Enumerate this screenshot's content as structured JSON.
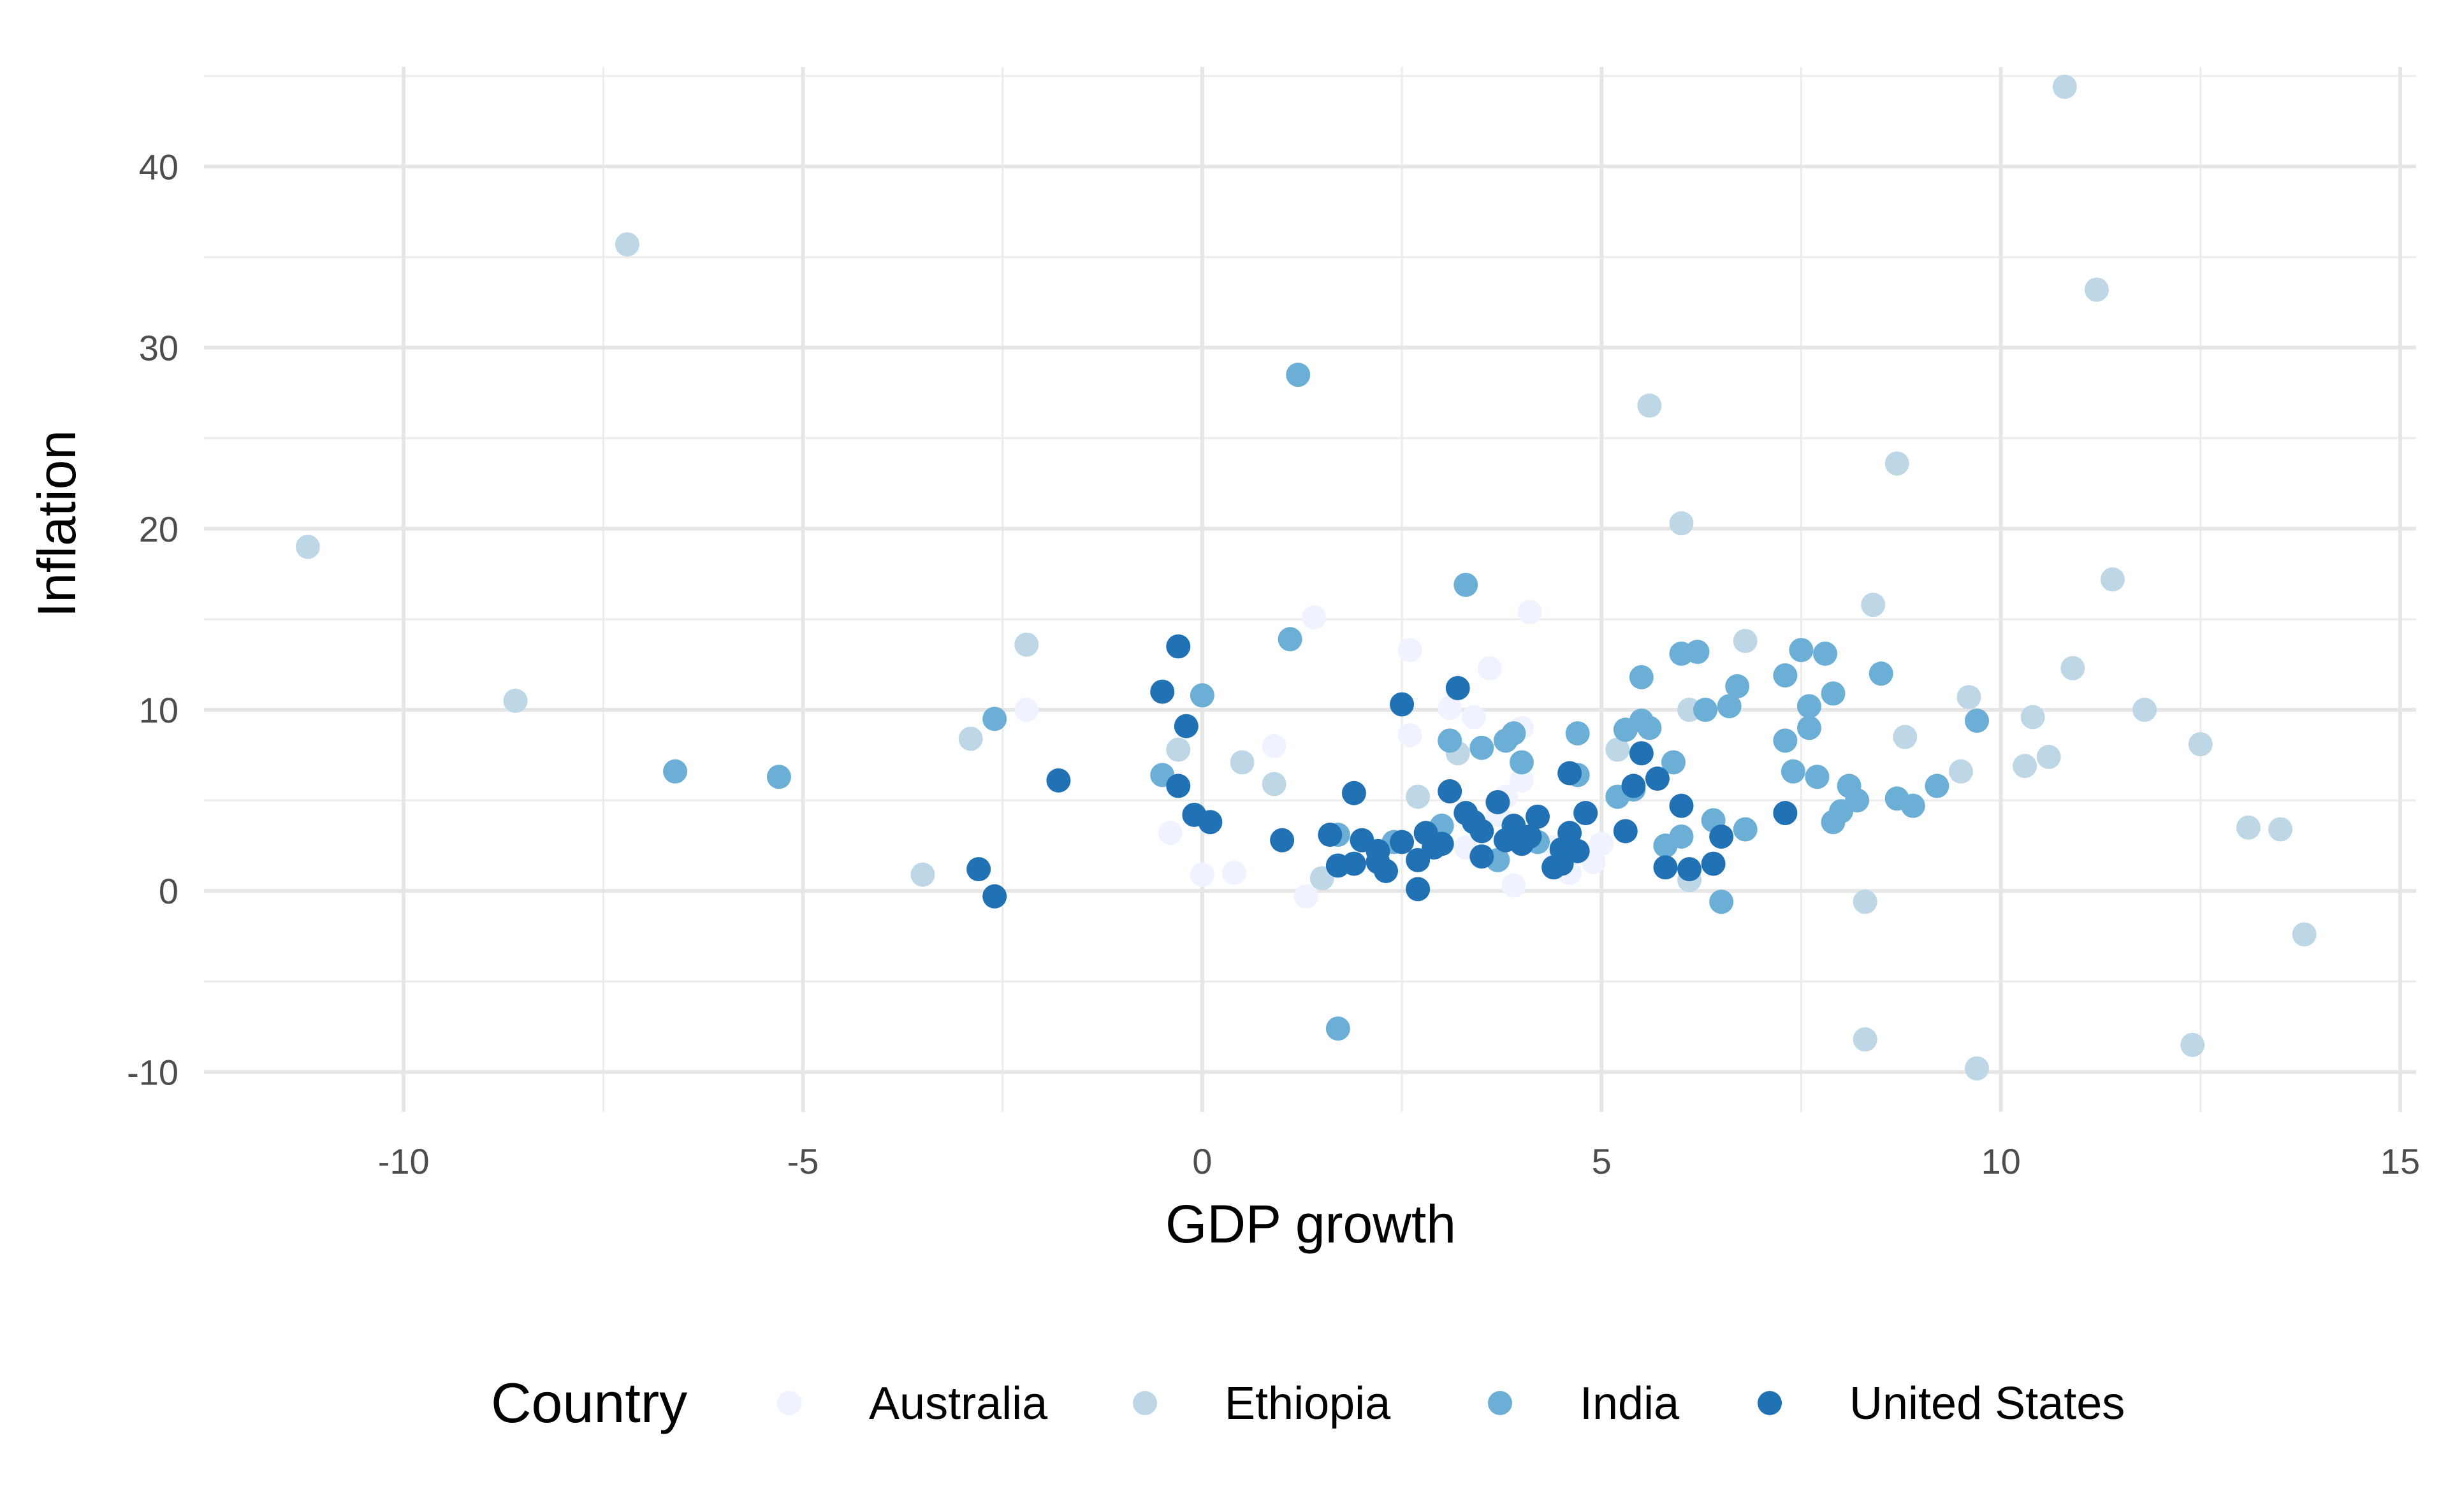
{
  "chart_data": {
    "type": "scatter",
    "xlabel": "GDP growth",
    "ylabel": "Inflation",
    "xlim": [
      -12.5,
      15.2
    ],
    "ylim": [
      -12.2,
      45.5
    ],
    "x_ticks": [
      -10,
      -5,
      0,
      5,
      10,
      15
    ],
    "y_ticks": [
      -10,
      0,
      10,
      20,
      30,
      40
    ],
    "x_tick_labels": [
      "-10",
      "-5",
      "0",
      "5",
      "10",
      "15"
    ],
    "y_tick_labels": [
      "-10",
      "0",
      "10",
      "20",
      "30",
      "40"
    ],
    "grid": true,
    "legend": {
      "title": "Country",
      "position": "bottom"
    },
    "series": [
      {
        "name": "Australia",
        "color": "#eff3ff",
        "points": [
          [
            -0.4,
            3.2
          ],
          [
            0,
            0.9
          ],
          [
            0.4,
            1.0
          ],
          [
            0.9,
            8.0
          ],
          [
            1.3,
            -0.3
          ],
          [
            1.4,
            15.1
          ],
          [
            2.6,
            13.3
          ],
          [
            2.6,
            8.6
          ],
          [
            2.9,
            3.0
          ],
          [
            3.1,
            10.1
          ],
          [
            3.4,
            9.6
          ],
          [
            3.6,
            12.3
          ],
          [
            3.8,
            5.2
          ],
          [
            3.9,
            0.3
          ],
          [
            4.0,
            6.1
          ],
          [
            4.0,
            9.0
          ],
          [
            4.1,
            15.4
          ],
          [
            4.4,
            2.4
          ],
          [
            4.6,
            1.0
          ],
          [
            4.9,
            1.6
          ],
          [
            3.3,
            2.4
          ],
          [
            -2.2,
            10.0
          ],
          [
            2.2,
            2.1
          ],
          [
            3.7,
            4.2
          ],
          [
            5.0,
            2.6
          ]
        ]
      },
      {
        "name": "Ethiopia",
        "color": "#bdd7e7",
        "points": [
          [
            -11.2,
            19.0
          ],
          [
            -8.6,
            10.5
          ],
          [
            -7.2,
            35.7
          ],
          [
            -3.5,
            0.9
          ],
          [
            -2.9,
            8.4
          ],
          [
            -2.2,
            13.6
          ],
          [
            -0.3,
            7.8
          ],
          [
            0.5,
            7.1
          ],
          [
            0.9,
            5.9
          ],
          [
            1.5,
            0.7
          ],
          [
            2.7,
            5.2
          ],
          [
            3.2,
            7.6
          ],
          [
            5.6,
            26.8
          ],
          [
            6.0,
            20.3
          ],
          [
            6.1,
            10.0
          ],
          [
            6.1,
            0.6
          ],
          [
            6.8,
            13.8
          ],
          [
            8.3,
            -0.6
          ],
          [
            8.3,
            -8.2
          ],
          [
            8.4,
            15.8
          ],
          [
            8.7,
            23.6
          ],
          [
            8.8,
            8.5
          ],
          [
            9.5,
            6.6
          ],
          [
            9.6,
            10.7
          ],
          [
            9.7,
            -9.8
          ],
          [
            10.3,
            6.9
          ],
          [
            10.4,
            9.6
          ],
          [
            10.6,
            7.4
          ],
          [
            10.8,
            44.4
          ],
          [
            10.9,
            12.3
          ],
          [
            11.2,
            33.2
          ],
          [
            11.4,
            17.2
          ],
          [
            11.8,
            10.0
          ],
          [
            12.4,
            -8.5
          ],
          [
            12.5,
            8.1
          ],
          [
            13.1,
            3.5
          ],
          [
            13.5,
            3.4
          ],
          [
            13.8,
            -2.4
          ],
          [
            5.2,
            7.8
          ]
        ]
      },
      {
        "name": "India",
        "color": "#6baed6",
        "points": [
          [
            -6.6,
            6.6
          ],
          [
            -5.3,
            6.3
          ],
          [
            -2.6,
            9.5
          ],
          [
            -0.5,
            6.4
          ],
          [
            0,
            10.8
          ],
          [
            1.1,
            13.9
          ],
          [
            1.2,
            28.5
          ],
          [
            1.7,
            -7.6
          ],
          [
            1.7,
            3.1
          ],
          [
            2.4,
            2.7
          ],
          [
            3.0,
            3.6
          ],
          [
            3.1,
            8.3
          ],
          [
            3.3,
            16.9
          ],
          [
            3.5,
            7.9
          ],
          [
            3.7,
            1.7
          ],
          [
            3.8,
            8.3
          ],
          [
            3.9,
            8.7
          ],
          [
            4.0,
            7.1
          ],
          [
            4.2,
            2.7
          ],
          [
            4.7,
            8.7
          ],
          [
            4.7,
            6.4
          ],
          [
            4.8,
            4.3
          ],
          [
            5.2,
            5.2
          ],
          [
            5.3,
            8.9
          ],
          [
            5.4,
            5.6
          ],
          [
            5.5,
            9.4
          ],
          [
            5.5,
            11.8
          ],
          [
            5.6,
            9.0
          ],
          [
            5.8,
            2.5
          ],
          [
            5.9,
            7.1
          ],
          [
            6.0,
            3.0
          ],
          [
            6.0,
            13.1
          ],
          [
            6.2,
            13.2
          ],
          [
            6.3,
            10.0
          ],
          [
            6.4,
            3.9
          ],
          [
            6.5,
            -0.6
          ],
          [
            6.6,
            10.2
          ],
          [
            6.7,
            11.3
          ],
          [
            6.8,
            3.4
          ],
          [
            7.3,
            8.3
          ],
          [
            7.3,
            11.9
          ],
          [
            7.4,
            6.6
          ],
          [
            7.5,
            13.3
          ],
          [
            7.6,
            9.0
          ],
          [
            7.6,
            10.2
          ],
          [
            7.7,
            6.3
          ],
          [
            7.8,
            13.1
          ],
          [
            7.9,
            10.9
          ],
          [
            7.9,
            3.8
          ],
          [
            8.0,
            4.4
          ],
          [
            8.1,
            5.8
          ],
          [
            8.2,
            5.0
          ],
          [
            8.5,
            12.0
          ],
          [
            8.7,
            5.1
          ],
          [
            8.9,
            4.7
          ],
          [
            9.2,
            5.8
          ],
          [
            9.7,
            9.4
          ]
        ]
      },
      {
        "name": "United States",
        "color": "#2171b5",
        "points": [
          [
            -2.8,
            1.2
          ],
          [
            -2.6,
            -0.3
          ],
          [
            -1.8,
            6.1
          ],
          [
            -0.5,
            11.0
          ],
          [
            -0.3,
            5.8
          ],
          [
            -0.3,
            13.5
          ],
          [
            -0.2,
            9.1
          ],
          [
            -0.1,
            4.2
          ],
          [
            0.1,
            3.8
          ],
          [
            1.0,
            2.8
          ],
          [
            1.6,
            3.1
          ],
          [
            1.7,
            1.4
          ],
          [
            1.9,
            1.5
          ],
          [
            1.9,
            5.4
          ],
          [
            2.0,
            2.8
          ],
          [
            2.2,
            2.2
          ],
          [
            2.3,
            1.1
          ],
          [
            2.5,
            2.7
          ],
          [
            2.5,
            10.3
          ],
          [
            2.7,
            0.1
          ],
          [
            2.7,
            1.7
          ],
          [
            2.8,
            3.2
          ],
          [
            2.9,
            2.4
          ],
          [
            3.1,
            5.5
          ],
          [
            3.2,
            11.2
          ],
          [
            3.3,
            4.3
          ],
          [
            3.4,
            3.8
          ],
          [
            3.5,
            1.9
          ],
          [
            3.5,
            3.3
          ],
          [
            3.7,
            4.9
          ],
          [
            3.8,
            2.8
          ],
          [
            3.9,
            3.6
          ],
          [
            4.0,
            2.6
          ],
          [
            4.1,
            3.0
          ],
          [
            4.2,
            4.1
          ],
          [
            4.4,
            1.3
          ],
          [
            4.5,
            2.3
          ],
          [
            4.5,
            1.5
          ],
          [
            4.6,
            6.5
          ],
          [
            4.7,
            2.2
          ],
          [
            4.8,
            4.3
          ],
          [
            5.4,
            5.8
          ],
          [
            5.5,
            7.6
          ],
          [
            5.7,
            6.2
          ],
          [
            5.8,
            1.3
          ],
          [
            6.0,
            4.7
          ],
          [
            6.1,
            1.2
          ],
          [
            6.4,
            1.5
          ],
          [
            6.5,
            3.0
          ],
          [
            7.3,
            4.3
          ],
          [
            5.3,
            3.3
          ],
          [
            4.6,
            3.2
          ],
          [
            3.0,
            2.6
          ],
          [
            2.2,
            1.6
          ]
        ]
      }
    ]
  }
}
